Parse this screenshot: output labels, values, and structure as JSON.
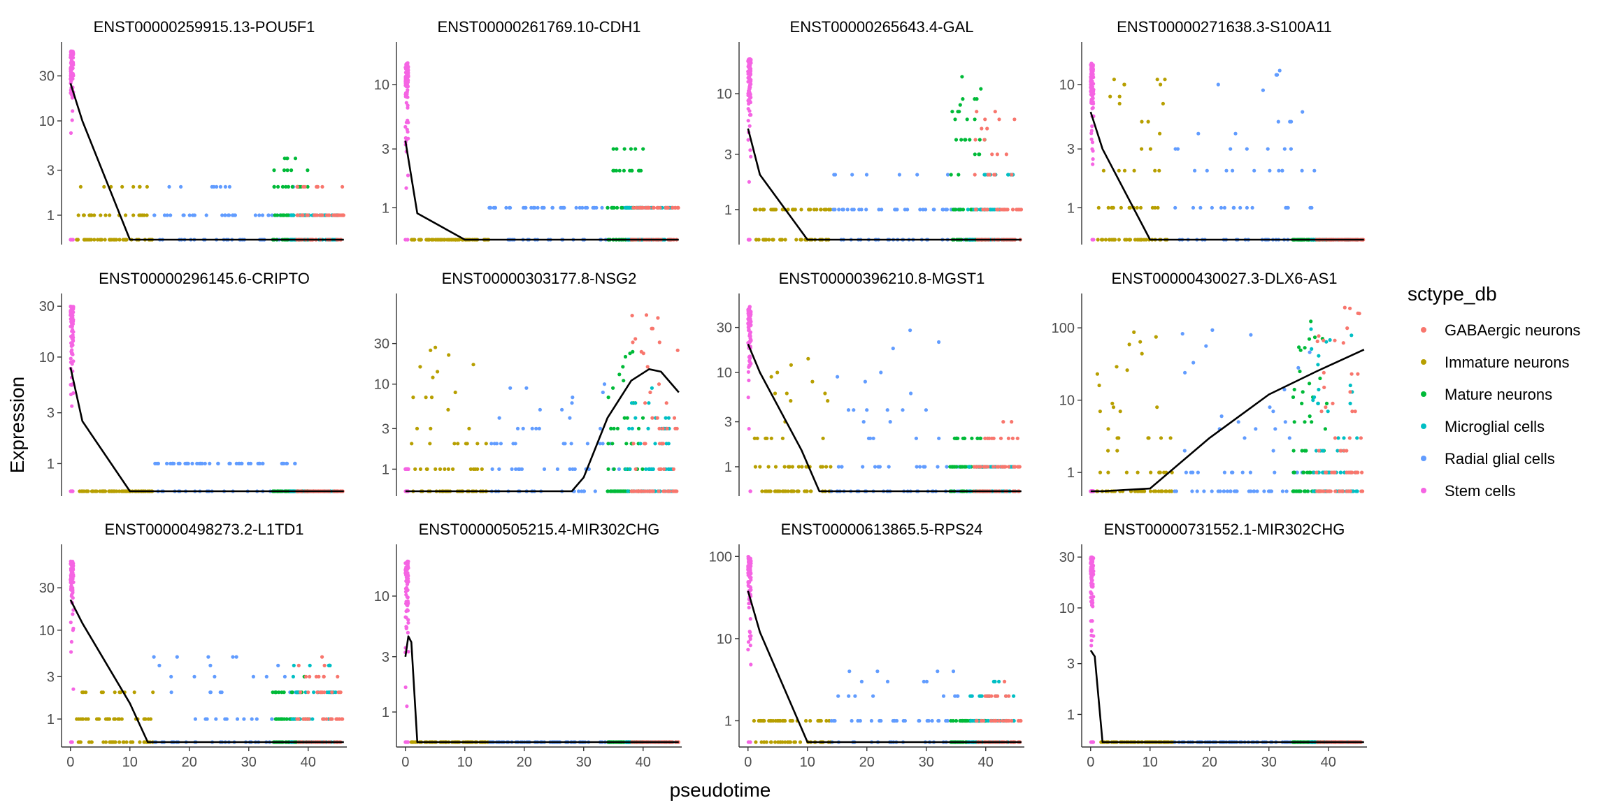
{
  "chart_data": {
    "type": "scatter",
    "facet_layout": "4 columns x 3 rows",
    "xlabel": "pseudotime",
    "ylabel": "Expression",
    "y_scale": "log10 (expression + 1 style); zero values plotted at bottom",
    "xlim": [
      -1.5,
      46.5
    ],
    "x_ticks": [
      0,
      10,
      20,
      30,
      40
    ],
    "legend": {
      "title": "sctype_db",
      "position": "right",
      "entries": [
        {
          "name": "GABAergic neurons",
          "color": "#F8766D"
        },
        {
          "name": "Immature neurons",
          "color": "#B79F00"
        },
        {
          "name": "Mature neurons",
          "color": "#00BA38"
        },
        {
          "name": "Microglial cells",
          "color": "#00BFC4"
        },
        {
          "name": "Radial glial cells",
          "color": "#619CFF"
        },
        {
          "name": "Stem cells",
          "color": "#F564E3"
        }
      ]
    },
    "group_pseudotime_ranges": {
      "Stem cells": [
        0,
        0.5
      ],
      "Immature neurons": [
        1,
        14
      ],
      "Radial glial cells": [
        14,
        38
      ],
      "Mature neurons": [
        34,
        40
      ],
      "Microglial cells": [
        37,
        45
      ],
      "GABAergic neurons": [
        38,
        46
      ]
    },
    "panels": [
      {
        "title": "ENST00000259915.13-POU5F1",
        "y_ticks": [
          1,
          3,
          10,
          30
        ],
        "ymax": 60,
        "trend": [
          [
            0,
            25
          ],
          [
            2,
            10
          ],
          [
            10,
            0
          ],
          [
            46,
            0
          ]
        ],
        "group_max": {
          "Stem cells": 55,
          "Immature neurons": 2,
          "Radial glial cells": 2,
          "Mature neurons": 4,
          "Microglial cells": 1,
          "GABAergic neurons": 2
        }
      },
      {
        "title": "ENST00000261769.10-CDH1",
        "y_ticks": [
          1,
          3,
          10
        ],
        "ymax": 20,
        "trend": [
          [
            0,
            3.5
          ],
          [
            2,
            0.9
          ],
          [
            10,
            0
          ],
          [
            46,
            0
          ]
        ],
        "group_max": {
          "Stem cells": 15,
          "Immature neurons": 0,
          "Radial glial cells": 1,
          "Mature neurons": 4,
          "Microglial cells": 1,
          "GABAergic neurons": 1
        }
      },
      {
        "title": "ENST00000265643.4-GAL",
        "y_ticks": [
          1,
          3,
          10
        ],
        "ymax": 25,
        "trend": [
          [
            0,
            5
          ],
          [
            2,
            2
          ],
          [
            10,
            0
          ],
          [
            46,
            0
          ]
        ],
        "group_max": {
          "Stem cells": 20,
          "Immature neurons": 1,
          "Radial glial cells": 2,
          "Mature neurons": 15,
          "Microglial cells": 3,
          "GABAergic neurons": 9
        }
      },
      {
        "title": "ENST00000271638.3-S100A11",
        "y_ticks": [
          1,
          3,
          10
        ],
        "ymax": 20,
        "trend": [
          [
            0,
            6
          ],
          [
            2,
            3
          ],
          [
            10,
            0
          ],
          [
            46,
            0
          ]
        ],
        "group_max": {
          "Stem cells": 15,
          "Immature neurons": 13,
          "Radial glial cells": 13,
          "Mature neurons": 0,
          "Microglial cells": 0,
          "GABAergic neurons": 0
        }
      },
      {
        "title": "ENST00000296145.6-CRIPTO",
        "y_ticks": [
          1,
          3,
          10,
          30
        ],
        "ymax": 35,
        "trend": [
          [
            0,
            8
          ],
          [
            2,
            2.5
          ],
          [
            10,
            0
          ],
          [
            46,
            0
          ]
        ],
        "group_max": {
          "Stem cells": 30,
          "Immature neurons": 0,
          "Radial glial cells": 1,
          "Mature neurons": 0,
          "Microglial cells": 0,
          "GABAergic neurons": 0
        }
      },
      {
        "title": "ENST00000303177.8-NSG2",
        "y_ticks": [
          1,
          3,
          10,
          30
        ],
        "ymax": 100,
        "trend": [
          [
            0,
            0
          ],
          [
            28,
            0
          ],
          [
            30,
            0.8
          ],
          [
            34,
            4
          ],
          [
            38,
            11
          ],
          [
            41,
            15
          ],
          [
            43,
            14
          ],
          [
            46,
            8
          ]
        ],
        "group_max": {
          "Stem cells": 1,
          "Immature neurons": 28,
          "Radial glial cells": 10,
          "Mature neurons": 30,
          "Microglial cells": 20,
          "GABAergic neurons": 80
        }
      },
      {
        "title": "ENST00000396210.8-MGST1",
        "y_ticks": [
          1,
          3,
          10,
          30
        ],
        "ymax": 60,
        "trend": [
          [
            0,
            20
          ],
          [
            2,
            10
          ],
          [
            9,
            1.5
          ],
          [
            12,
            0
          ],
          [
            46,
            0
          ]
        ],
        "group_max": {
          "Stem cells": 50,
          "Immature neurons": 32,
          "Radial glial cells": 30,
          "Mature neurons": 2,
          "Microglial cells": 1,
          "GABAergic neurons": 3
        }
      },
      {
        "title": "ENST00000430027.3-DLX6-AS1",
        "y_ticks": [
          1,
          10,
          100
        ],
        "ymax": 250,
        "trend": [
          [
            0,
            0
          ],
          [
            2,
            0
          ],
          [
            10,
            0.6
          ],
          [
            20,
            3
          ],
          [
            30,
            12
          ],
          [
            38,
            25
          ],
          [
            46,
            50
          ]
        ],
        "group_max": {
          "Stem cells": 0,
          "Immature neurons": 100,
          "Radial glial cells": 170,
          "Mature neurons": 200,
          "Microglial cells": 200,
          "GABAergic neurons": 200
        }
      },
      {
        "title": "ENST00000498273.2-L1TD1",
        "y_ticks": [
          1,
          3,
          10,
          30
        ],
        "ymax": 80,
        "trend": [
          [
            0,
            22
          ],
          [
            2,
            12
          ],
          [
            10,
            1.5
          ],
          [
            13,
            0
          ],
          [
            46,
            0
          ]
        ],
        "group_max": {
          "Stem cells": 60,
          "Immature neurons": 2,
          "Radial glial cells": 7,
          "Mature neurons": 3,
          "Microglial cells": 6,
          "GABAergic neurons": 5
        }
      },
      {
        "title": "ENST00000505215.4-MIR302CHG",
        "y_ticks": [
          1,
          3,
          10
        ],
        "ymax": 25,
        "trend": [
          [
            0,
            3
          ],
          [
            0.5,
            4.5
          ],
          [
            1,
            4
          ],
          [
            2,
            0
          ],
          [
            46,
            0
          ]
        ],
        "group_max": {
          "Stem cells": 20,
          "Immature neurons": 0,
          "Radial glial cells": 0,
          "Mature neurons": 0,
          "Microglial cells": 0,
          "GABAergic neurons": 0
        }
      },
      {
        "title": "ENST00000613865.5-RPS24",
        "y_ticks": [
          1,
          10,
          100
        ],
        "ymax": 120,
        "trend": [
          [
            0,
            38
          ],
          [
            2,
            12
          ],
          [
            10,
            0
          ],
          [
            46,
            0
          ]
        ],
        "group_max": {
          "Stem cells": 100,
          "Immature neurons": 1,
          "Radial glial cells": 4,
          "Mature neurons": 1,
          "Microglial cells": 3,
          "GABAergic neurons": 3
        }
      },
      {
        "title": "ENST00000731552.1-MIR302CHG",
        "y_ticks": [
          1,
          3,
          10,
          30
        ],
        "ymax": 35,
        "trend": [
          [
            0,
            4
          ],
          [
            0.7,
            3.5
          ],
          [
            2,
            0
          ],
          [
            46,
            0
          ]
        ],
        "group_max": {
          "Stem cells": 30,
          "Immature neurons": 0,
          "Radial glial cells": 0,
          "Mature neurons": 0,
          "Microglial cells": 0,
          "GABAergic neurons": 0
        }
      }
    ]
  }
}
